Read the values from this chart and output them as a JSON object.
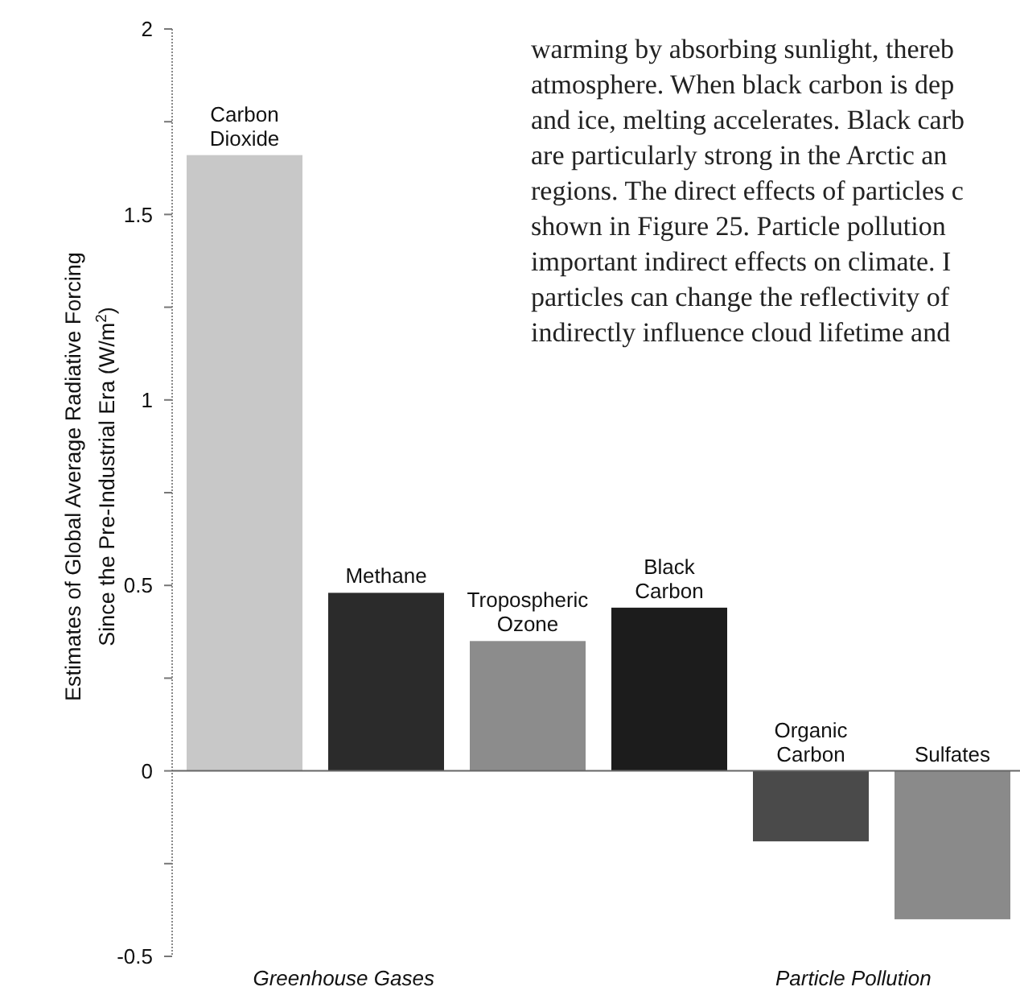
{
  "chart_data": {
    "type": "bar",
    "ylabel": "Estimates of Global Average Radiative Forcing\nSince the Pre-Industrial Era (W/m$^{2}$)",
    "categories": [
      "Carbon Dioxide",
      "Methane",
      "Tropospheric Ozone",
      "Black Carbon",
      "Organic Carbon",
      "Sulfates"
    ],
    "values": [
      1.66,
      0.48,
      0.35,
      0.44,
      -0.19,
      -0.4
    ],
    "colors": [
      "#c8c8c8",
      "#2b2b2b",
      "#8c8c8c",
      "#1c1c1c",
      "#4a4a4a",
      "#8a8a8a"
    ],
    "ylim": [
      -0.5,
      2
    ],
    "yticks": [
      -0.5,
      {
        "value": -0.25,
        "label": null
      },
      0,
      {
        "value": 0.25,
        "label": null
      },
      0.5,
      {
        "value": 0.75,
        "label": null
      },
      1,
      {
        "value": 1.25,
        "label": null
      },
      1.5,
      {
        "value": 1.75,
        "label": null
      },
      2
    ],
    "annotations": [
      "Greenhouse Gases",
      "Particle Pollution",
      "warming by absorbing sunlight, thereb",
      "atmosphere. When black carbon is dep",
      "and ice, melting accelerates. Black carb",
      "are particularly strong in the Arctic an",
      "regions. The direct effects of particles c",
      "shown in Figure 25. Particle pollution",
      "important indirect effects on climate. I",
      "particles can change the reflectivity of",
      "indirectly influence cloud lifetime and"
    ]
  }
}
